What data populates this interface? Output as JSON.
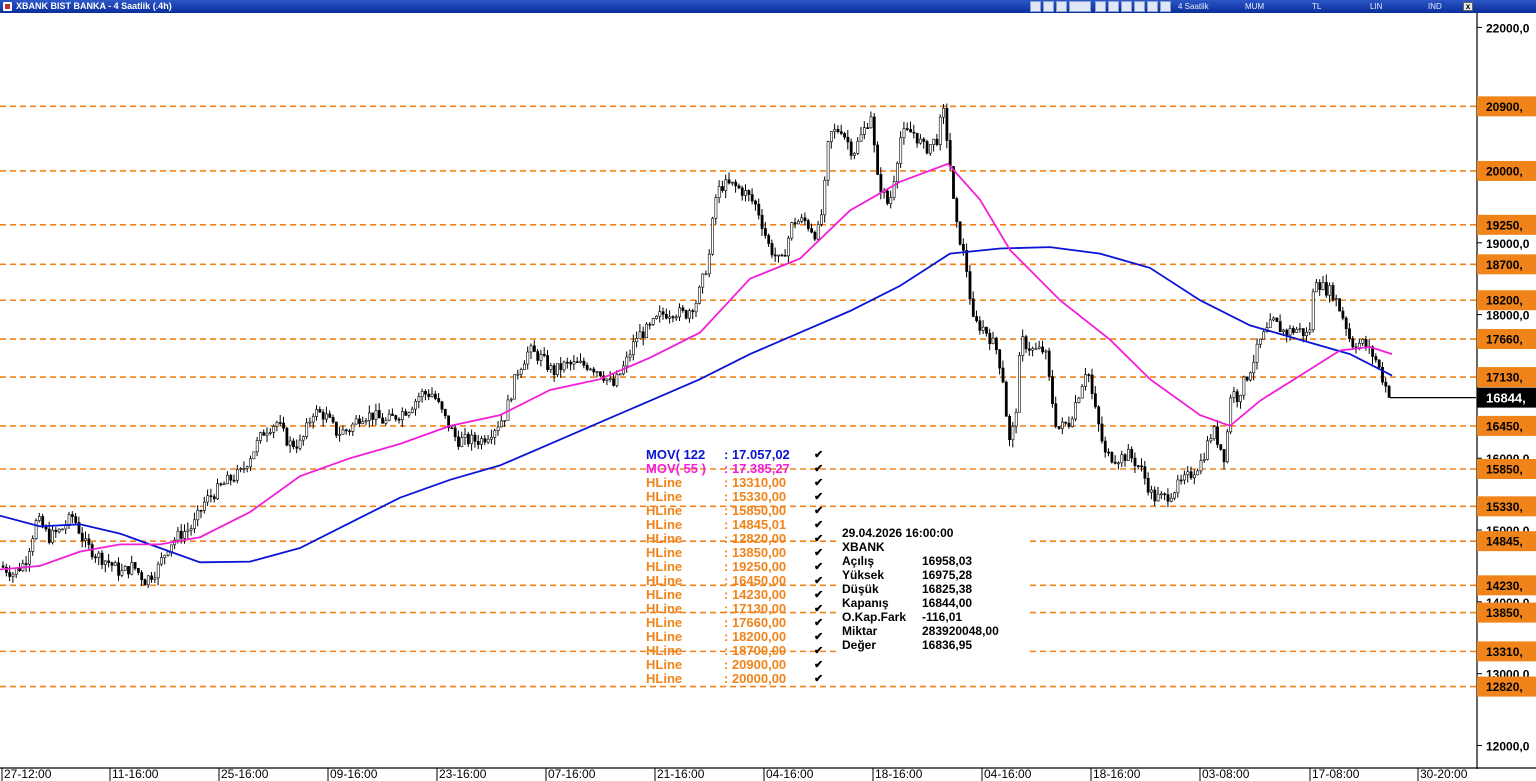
{
  "window": {
    "title": "XBANK BIST BANKA - 4 Saatlik (.4h)",
    "toolbar": {
      "period": "4 Saatlik",
      "mum": "MUM",
      "tl": "TL",
      "lin": "LIN",
      "ind": "IND"
    },
    "close": "x"
  },
  "chart_data": {
    "type": "candlestick",
    "symbol": "XBANK",
    "ylim": [
      11700,
      22200
    ],
    "y_ticks": [
      "22000,0",
      "19000,0",
      "18000,0",
      "16000,0",
      "15000,0",
      "14000,0",
      "13000,0",
      "12000,0"
    ],
    "x_ticks": [
      "27-12:00",
      "11-16:00",
      "25-16:00",
      "09-16:00",
      "23-16:00",
      "07-16:00",
      "21-16:00",
      "04-16:00",
      "18-16:00",
      "04-16:00",
      "18-16:00",
      "03-08:00",
      "17-08:00",
      "30-20:00"
    ],
    "hlines": [
      {
        "label": "20900,",
        "value": 20900
      },
      {
        "label": "20000,",
        "value": 20000
      },
      {
        "label": "19250,",
        "value": 19250
      },
      {
        "label": "18700,",
        "value": 18700
      },
      {
        "label": "18200,",
        "value": 18200
      },
      {
        "label": "17660,",
        "value": 17660
      },
      {
        "label": "17130,",
        "value": 17130
      },
      {
        "label": "16450,",
        "value": 16450
      },
      {
        "label": "15850,",
        "value": 15850
      },
      {
        "label": "15330,",
        "value": 15330
      },
      {
        "label": "14845,",
        "value": 14845
      },
      {
        "label": "14230,",
        "value": 14230
      },
      {
        "label": "13850,",
        "value": 13850
      },
      {
        "label": "13310,",
        "value": 13310
      },
      {
        "label": "12820,",
        "value": 12820
      }
    ],
    "last_price": {
      "label": "16844,",
      "value": 16844
    },
    "price_path": [
      [
        0,
        14500
      ],
      [
        12,
        14400
      ],
      [
        24,
        14550
      ],
      [
        36,
        15150
      ],
      [
        48,
        14900
      ],
      [
        60,
        15000
      ],
      [
        72,
        15200
      ],
      [
        84,
        14800
      ],
      [
        96,
        14650
      ],
      [
        108,
        14550
      ],
      [
        120,
        14400
      ],
      [
        132,
        14500
      ],
      [
        144,
        14300
      ],
      [
        156,
        14450
      ],
      [
        168,
        14800
      ],
      [
        180,
        14950
      ],
      [
        192,
        15050
      ],
      [
        204,
        15400
      ],
      [
        216,
        15550
      ],
      [
        228,
        15700
      ],
      [
        240,
        15800
      ],
      [
        252,
        16100
      ],
      [
        264,
        16400
      ],
      [
        276,
        16500
      ],
      [
        288,
        16200
      ],
      [
        300,
        16200
      ],
      [
        312,
        16650
      ],
      [
        324,
        16600
      ],
      [
        336,
        16350
      ],
      [
        348,
        16400
      ],
      [
        360,
        16600
      ],
      [
        372,
        16600
      ],
      [
        384,
        16500
      ],
      [
        396,
        16600
      ],
      [
        408,
        16700
      ],
      [
        420,
        16900
      ],
      [
        432,
        16900
      ],
      [
        444,
        16550
      ],
      [
        456,
        16250
      ],
      [
        468,
        16250
      ],
      [
        480,
        16250
      ],
      [
        492,
        16400
      ],
      [
        504,
        16600
      ],
      [
        516,
        17200
      ],
      [
        528,
        17500
      ],
      [
        540,
        17400
      ],
      [
        552,
        17200
      ],
      [
        564,
        17300
      ],
      [
        576,
        17300
      ],
      [
        588,
        17300
      ],
      [
        600,
        17200
      ],
      [
        612,
        17000
      ],
      [
        624,
        17300
      ],
      [
        636,
        17700
      ],
      [
        648,
        17800
      ],
      [
        660,
        18000
      ],
      [
        672,
        18050
      ],
      [
        684,
        18000
      ],
      [
        696,
        18200
      ],
      [
        708,
        18800
      ],
      [
        714,
        19600
      ],
      [
        720,
        19800
      ],
      [
        732,
        19800
      ],
      [
        744,
        19700
      ],
      [
        756,
        19500
      ],
      [
        768,
        18950
      ],
      [
        780,
        18700
      ],
      [
        792,
        19300
      ],
      [
        804,
        19300
      ],
      [
        816,
        19100
      ],
      [
        822,
        19500
      ],
      [
        828,
        20500
      ],
      [
        840,
        20600
      ],
      [
        852,
        20250
      ],
      [
        864,
        20600
      ],
      [
        870,
        20800
      ],
      [
        876,
        19900
      ],
      [
        888,
        19500
      ],
      [
        900,
        20500
      ],
      [
        912,
        20550
      ],
      [
        924,
        20300
      ],
      [
        936,
        20450
      ],
      [
        942,
        20850
      ],
      [
        948,
        20250
      ],
      [
        954,
        19300
      ],
      [
        960,
        19000
      ],
      [
        966,
        18600
      ],
      [
        972,
        17900
      ],
      [
        984,
        17800
      ],
      [
        996,
        17500
      ],
      [
        1002,
        17100
      ],
      [
        1008,
        16200
      ],
      [
        1014,
        16500
      ],
      [
        1020,
        17650
      ],
      [
        1032,
        17500
      ],
      [
        1044,
        17500
      ],
      [
        1050,
        16900
      ],
      [
        1056,
        16400
      ],
      [
        1068,
        16500
      ],
      [
        1080,
        17000
      ],
      [
        1086,
        17300
      ],
      [
        1092,
        16800
      ],
      [
        1104,
        16050
      ],
      [
        1116,
        16000
      ],
      [
        1128,
        16050
      ],
      [
        1140,
        15850
      ],
      [
        1152,
        15450
      ],
      [
        1164,
        15450
      ],
      [
        1176,
        15600
      ],
      [
        1188,
        15750
      ],
      [
        1200,
        15950
      ],
      [
        1212,
        16400
      ],
      [
        1224,
        16000
      ],
      [
        1230,
        16950
      ],
      [
        1236,
        16850
      ],
      [
        1248,
        17200
      ],
      [
        1260,
        17650
      ],
      [
        1272,
        17900
      ],
      [
        1284,
        17750
      ],
      [
        1296,
        17800
      ],
      [
        1308,
        17700
      ],
      [
        1314,
        18550
      ],
      [
        1320,
        18400
      ],
      [
        1332,
        18300
      ],
      [
        1344,
        17900
      ],
      [
        1350,
        17600
      ],
      [
        1362,
        17600
      ],
      [
        1374,
        17400
      ],
      [
        1386,
        16950
      ],
      [
        1392,
        16844
      ]
    ],
    "series": [
      {
        "name": "MOV( 122 : 17.057,02",
        "color": "#0a14d4",
        "points": [
          [
            0,
            15200
          ],
          [
            40,
            15050
          ],
          [
            80,
            15080
          ],
          [
            120,
            14950
          ],
          [
            160,
            14750
          ],
          [
            200,
            14550
          ],
          [
            250,
            14560
          ],
          [
            300,
            14750
          ],
          [
            350,
            15100
          ],
          [
            400,
            15450
          ],
          [
            450,
            15700
          ],
          [
            500,
            15900
          ],
          [
            550,
            16200
          ],
          [
            600,
            16500
          ],
          [
            650,
            16800
          ],
          [
            700,
            17100
          ],
          [
            750,
            17450
          ],
          [
            800,
            17750
          ],
          [
            850,
            18050
          ],
          [
            900,
            18400
          ],
          [
            950,
            18850
          ],
          [
            1000,
            18920
          ],
          [
            1050,
            18940
          ],
          [
            1100,
            18850
          ],
          [
            1150,
            18650
          ],
          [
            1200,
            18200
          ],
          [
            1250,
            17850
          ],
          [
            1300,
            17650
          ],
          [
            1350,
            17450
          ],
          [
            1392,
            17150
          ]
        ]
      },
      {
        "name": "MOV( 55 ) : 17.385,27",
        "color": "#f21ed8",
        "points": [
          [
            0,
            14450
          ],
          [
            40,
            14500
          ],
          [
            80,
            14700
          ],
          [
            120,
            14800
          ],
          [
            160,
            14800
          ],
          [
            200,
            14900
          ],
          [
            250,
            15250
          ],
          [
            300,
            15750
          ],
          [
            350,
            16000
          ],
          [
            400,
            16200
          ],
          [
            450,
            16450
          ],
          [
            500,
            16600
          ],
          [
            550,
            16950
          ],
          [
            600,
            17100
          ],
          [
            650,
            17400
          ],
          [
            700,
            17750
          ],
          [
            750,
            18500
          ],
          [
            800,
            18780
          ],
          [
            850,
            19450
          ],
          [
            900,
            19850
          ],
          [
            948,
            20100
          ],
          [
            980,
            19600
          ],
          [
            1010,
            18900
          ],
          [
            1060,
            18200
          ],
          [
            1110,
            17650
          ],
          [
            1150,
            17100
          ],
          [
            1200,
            16600
          ],
          [
            1230,
            16450
          ],
          [
            1260,
            16800
          ],
          [
            1300,
            17150
          ],
          [
            1340,
            17500
          ],
          [
            1370,
            17550
          ],
          [
            1392,
            17450
          ]
        ]
      }
    ],
    "indicator_legend": [
      {
        "name": "MOV( 122",
        "value": "17.057,02",
        "color": "#0a14d4"
      },
      {
        "name": "MOV( 55 )",
        "value": "17.385,27",
        "color": "#f21ed8"
      },
      {
        "name": "HLine",
        "value": "13310,00",
        "color": "#f0841a"
      },
      {
        "name": "HLine",
        "value": "15330,00",
        "color": "#f0841a"
      },
      {
        "name": "HLine",
        "value": "15850,00",
        "color": "#f0841a"
      },
      {
        "name": "HLine",
        "value": "14845,01",
        "color": "#f0841a"
      },
      {
        "name": "HLine",
        "value": "12820,00",
        "color": "#f0841a"
      },
      {
        "name": "HLine",
        "value": "13850,00",
        "color": "#f0841a"
      },
      {
        "name": "HLine",
        "value": "19250,00",
        "color": "#f0841a"
      },
      {
        "name": "HLine",
        "value": "16450,00",
        "color": "#f0841a"
      },
      {
        "name": "HLine",
        "value": "14230,00",
        "color": "#f0841a"
      },
      {
        "name": "HLine",
        "value": "17130,00",
        "color": "#f0841a"
      },
      {
        "name": "HLine",
        "value": "17660,00",
        "color": "#f0841a"
      },
      {
        "name": "HLine",
        "value": "18200,00",
        "color": "#f0841a"
      },
      {
        "name": "HLine",
        "value": "18700,00",
        "color": "#f0841a"
      },
      {
        "name": "HLine",
        "value": "20900,00",
        "color": "#f0841a"
      },
      {
        "name": "HLine",
        "value": "20000,00",
        "color": "#f0841a"
      }
    ],
    "info_box": {
      "datetime": "29.04.2026  16:00:00",
      "symbol": "XBANK",
      "rows": [
        {
          "label": "Açılış",
          "value": "16958,03"
        },
        {
          "label": "Yüksek",
          "value": "16975,28"
        },
        {
          "label": "Düşük",
          "value": "16825,38"
        },
        {
          "label": "Kapanış",
          "value": "16844,00"
        },
        {
          "label": "O.Kap.Fark",
          "value": "-116,01"
        },
        {
          "label": "Miktar",
          "value": "283920048,00"
        },
        {
          "label": "Değer",
          "value": "16836,95"
        }
      ]
    }
  },
  "colors": {
    "hline": "#f0841a",
    "candle": "#000000",
    "axis": "#000000",
    "title_bg": "#0a2f9a"
  }
}
